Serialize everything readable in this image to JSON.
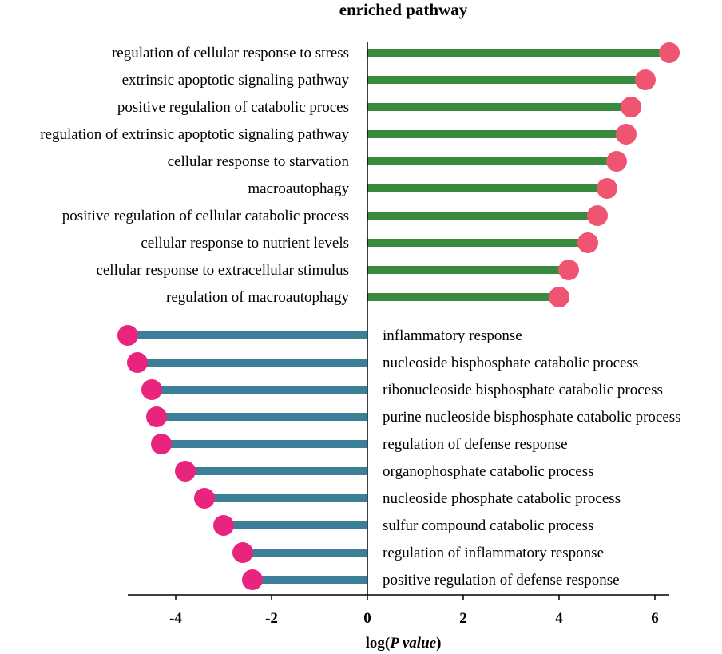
{
  "chart_data": {
    "type": "lollipop",
    "title": "enriched pathway",
    "xlabel_prefix": "log(",
    "xlabel_italic": "P value",
    "xlabel_suffix": ")",
    "xlim": [
      -5,
      6.3
    ],
    "xticks": [
      -4,
      -2,
      0,
      2,
      4,
      6
    ],
    "xtick_labels": [
      "-4",
      "-2",
      "0",
      "2",
      "4",
      "6"
    ],
    "series": [
      {
        "name": "positive",
        "stem_color": "#3a8a3e",
        "dot_color": "#ef5572",
        "categories": [
          "regulation of cellular response to stress",
          "extrinsic apoptotic signaling pathway",
          "positive regulalion of catabolic proces",
          "regulation of extrinsic apoptotic signaling pathway",
          "cellular response to starvation",
          "macroautophagy",
          "positive regulation of cellular catabolic process",
          "cellular response to nutrient levels",
          "cellular response to extracellular stimulus",
          "regulation of macroautophagy"
        ],
        "values": [
          6.3,
          5.8,
          5.5,
          5.4,
          5.2,
          5.0,
          4.8,
          4.6,
          4.2,
          4.0
        ]
      },
      {
        "name": "negative",
        "stem_color": "#3b7f99",
        "dot_color": "#e9247f",
        "categories": [
          "inflammatory response",
          "nucleoside bisphosphate catabolic process",
          "ribonucleoside bisphosphate catabolic process",
          "purine nucleoside bisphosphate catabolic process",
          "regulation of defense response",
          "organophosphate catabolic process",
          "nucleoside phosphate catabolic process",
          "sulfur compound catabolic process",
          "regulation of inflammatory response",
          "positive regulation of defense response"
        ],
        "values": [
          -5.0,
          -4.8,
          -4.5,
          -4.4,
          -4.3,
          -3.8,
          -3.4,
          -3.0,
          -2.6,
          -2.4
        ]
      }
    ]
  }
}
